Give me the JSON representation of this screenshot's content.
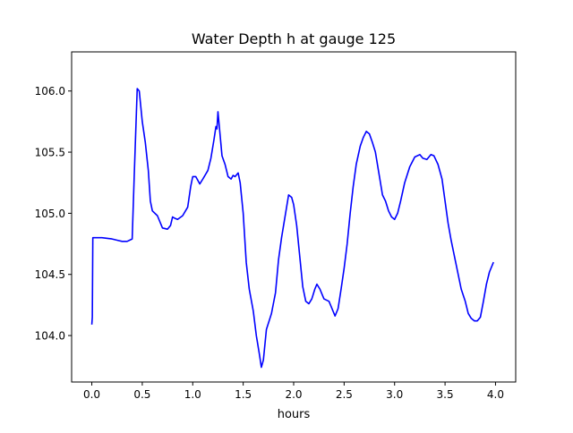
{
  "chart_data": {
    "type": "line",
    "title": "Water Depth h at gauge 125",
    "xlabel": "hours",
    "ylabel": "",
    "xlim": [
      -0.2,
      4.2
    ],
    "ylim": [
      103.62,
      106.32
    ],
    "xticks": [
      0.0,
      0.5,
      1.0,
      1.5,
      2.0,
      2.5,
      3.0,
      3.5,
      4.0
    ],
    "xtick_labels": [
      "0.0",
      "0.5",
      "1.0",
      "1.5",
      "2.0",
      "2.5",
      "3.0",
      "3.5",
      "4.0"
    ],
    "yticks": [
      104.0,
      104.5,
      105.0,
      105.5,
      106.0
    ],
    "ytick_labels": [
      "104.0",
      "104.5",
      "105.0",
      "105.5",
      "106.0"
    ],
    "grid": false,
    "legend": "none",
    "series": [
      {
        "color": "#0000ff",
        "points": [
          [
            0.0,
            104.09
          ],
          [
            0.005,
            104.15
          ],
          [
            0.01,
            104.8
          ],
          [
            0.1,
            104.8
          ],
          [
            0.2,
            104.79
          ],
          [
            0.25,
            104.78
          ],
          [
            0.3,
            104.77
          ],
          [
            0.35,
            104.77
          ],
          [
            0.4,
            104.79
          ],
          [
            0.42,
            105.3
          ],
          [
            0.45,
            106.02
          ],
          [
            0.47,
            106.0
          ],
          [
            0.5,
            105.75
          ],
          [
            0.53,
            105.58
          ],
          [
            0.56,
            105.35
          ],
          [
            0.58,
            105.1
          ],
          [
            0.6,
            105.02
          ],
          [
            0.65,
            104.98
          ],
          [
            0.7,
            104.88
          ],
          [
            0.75,
            104.87
          ],
          [
            0.78,
            104.9
          ],
          [
            0.8,
            104.97
          ],
          [
            0.82,
            104.96
          ],
          [
            0.85,
            104.95
          ],
          [
            0.9,
            104.98
          ],
          [
            0.95,
            105.05
          ],
          [
            0.98,
            105.22
          ],
          [
            1.0,
            105.3
          ],
          [
            1.03,
            105.3
          ],
          [
            1.07,
            105.24
          ],
          [
            1.1,
            105.28
          ],
          [
            1.15,
            105.35
          ],
          [
            1.18,
            105.45
          ],
          [
            1.21,
            105.6
          ],
          [
            1.23,
            105.71
          ],
          [
            1.24,
            105.69
          ],
          [
            1.25,
            105.83
          ],
          [
            1.27,
            105.65
          ],
          [
            1.29,
            105.47
          ],
          [
            1.32,
            105.4
          ],
          [
            1.35,
            105.3
          ],
          [
            1.38,
            105.28
          ],
          [
            1.4,
            105.31
          ],
          [
            1.42,
            105.3
          ],
          [
            1.45,
            105.33
          ],
          [
            1.47,
            105.25
          ],
          [
            1.5,
            105.0
          ],
          [
            1.53,
            104.6
          ],
          [
            1.56,
            104.38
          ],
          [
            1.6,
            104.2
          ],
          [
            1.63,
            104.0
          ],
          [
            1.66,
            103.85
          ],
          [
            1.68,
            103.74
          ],
          [
            1.7,
            103.8
          ],
          [
            1.73,
            104.05
          ],
          [
            1.78,
            104.18
          ],
          [
            1.82,
            104.35
          ],
          [
            1.85,
            104.62
          ],
          [
            1.88,
            104.8
          ],
          [
            1.92,
            105.0
          ],
          [
            1.95,
            105.15
          ],
          [
            1.98,
            105.13
          ],
          [
            2.0,
            105.07
          ],
          [
            2.03,
            104.9
          ],
          [
            2.06,
            104.65
          ],
          [
            2.09,
            104.4
          ],
          [
            2.12,
            104.28
          ],
          [
            2.15,
            104.26
          ],
          [
            2.18,
            104.3
          ],
          [
            2.21,
            104.38
          ],
          [
            2.23,
            104.42
          ],
          [
            2.26,
            104.38
          ],
          [
            2.3,
            104.3
          ],
          [
            2.35,
            104.28
          ],
          [
            2.38,
            104.22
          ],
          [
            2.41,
            104.16
          ],
          [
            2.44,
            104.22
          ],
          [
            2.47,
            104.38
          ],
          [
            2.5,
            104.55
          ],
          [
            2.53,
            104.75
          ],
          [
            2.56,
            105.0
          ],
          [
            2.59,
            105.22
          ],
          [
            2.62,
            105.4
          ],
          [
            2.66,
            105.55
          ],
          [
            2.69,
            105.62
          ],
          [
            2.72,
            105.67
          ],
          [
            2.75,
            105.65
          ],
          [
            2.78,
            105.58
          ],
          [
            2.81,
            105.5
          ],
          [
            2.83,
            105.4
          ],
          [
            2.86,
            105.25
          ],
          [
            2.88,
            105.15
          ],
          [
            2.91,
            105.1
          ],
          [
            2.94,
            105.02
          ],
          [
            2.97,
            104.97
          ],
          [
            3.0,
            104.95
          ],
          [
            3.03,
            105.0
          ],
          [
            3.06,
            105.1
          ],
          [
            3.1,
            105.25
          ],
          [
            3.15,
            105.38
          ],
          [
            3.2,
            105.46
          ],
          [
            3.25,
            105.48
          ],
          [
            3.28,
            105.45
          ],
          [
            3.32,
            105.44
          ],
          [
            3.36,
            105.48
          ],
          [
            3.39,
            105.47
          ],
          [
            3.43,
            105.4
          ],
          [
            3.47,
            105.28
          ],
          [
            3.5,
            105.1
          ],
          [
            3.53,
            104.92
          ],
          [
            3.56,
            104.78
          ],
          [
            3.6,
            104.62
          ],
          [
            3.63,
            104.5
          ],
          [
            3.66,
            104.38
          ],
          [
            3.7,
            104.28
          ],
          [
            3.73,
            104.18
          ],
          [
            3.76,
            104.14
          ],
          [
            3.79,
            104.12
          ],
          [
            3.82,
            104.12
          ],
          [
            3.85,
            104.15
          ],
          [
            3.88,
            104.28
          ],
          [
            3.91,
            104.42
          ],
          [
            3.94,
            104.52
          ],
          [
            3.98,
            104.6
          ]
        ]
      }
    ]
  }
}
